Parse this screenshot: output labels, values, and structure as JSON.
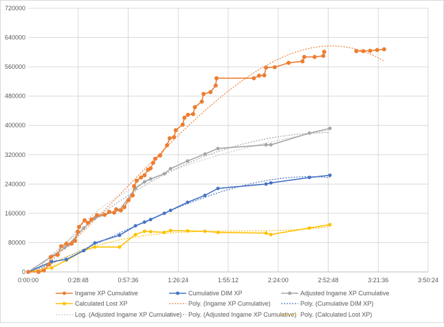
{
  "chart_data": {
    "type": "line",
    "title": "",
    "xlabel": "",
    "ylabel": "",
    "x_unit": "minutes",
    "xlim": [
      0,
      230.4
    ],
    "ylim": [
      0,
      720000
    ],
    "grid": true,
    "legend_placement": "bottom",
    "x_ticks": [
      0,
      28.8,
      57.6,
      86.4,
      115.2,
      144,
      172.8,
      201.6,
      230.4
    ],
    "x_tick_labels": [
      "0:00:00",
      "0:28:48",
      "0:57:36",
      "1:26:24",
      "1:55:12",
      "2:24:00",
      "2:52:48",
      "3:21:36",
      "3:50:24"
    ],
    "y_ticks": [
      0,
      80000,
      160000,
      240000,
      320000,
      400000,
      480000,
      560000,
      640000,
      720000
    ],
    "y_tick_labels": [
      "0",
      "80000",
      "160000",
      "240000",
      "320000",
      "400000",
      "480000",
      "560000",
      "640000",
      "720000"
    ],
    "series": [
      {
        "name": "Ingame XP Cumulative",
        "color": "#ed7d31",
        "x": [
          0,
          6,
          9,
          12,
          13,
          17,
          19,
          22,
          25,
          27,
          28.5,
          29.3,
          32.5,
          34.4,
          36.4,
          39.6,
          44,
          46.7,
          49.5,
          50.7,
          53.4,
          55.4,
          57.8,
          60.2,
          61,
          62.5,
          65,
          67,
          69,
          70.5,
          72,
          73.2,
          76,
          80,
          81.5,
          84,
          85,
          89,
          90,
          92,
          95,
          96,
          100,
          101,
          105,
          108,
          108.5,
          130,
          133,
          136,
          137,
          142,
          150,
          158,
          159,
          165,
          170,
          170.5,
          null,
          189,
          193,
          197,
          201,
          205
        ],
        "y": [
          0,
          0,
          4000,
          20000,
          41000,
          47000,
          70000,
          77000,
          77000,
          85000,
          110000,
          123000,
          141000,
          134000,
          143000,
          155000,
          156000,
          164000,
          162000,
          171000,
          168000,
          177000,
          196000,
          209000,
          234000,
          249000,
          258000,
          264000,
          279000,
          283000,
          298000,
          309000,
          318000,
          346000,
          365000,
          368000,
          387000,
          402000,
          421000,
          429000,
          431000,
          450000,
          465000,
          486000,
          491000,
          509000,
          529000,
          529000,
          536000,
          537000,
          558000,
          559000,
          571000,
          575000,
          587000,
          587000,
          590000,
          601000,
          null,
          603000,
          603000,
          604000,
          606000,
          608000
        ]
      },
      {
        "name": "Cumulative DIM XP",
        "color": "#4472c4",
        "x": [
          0,
          13.5,
          22,
          32,
          38.4,
          52.6,
          61.8,
          67,
          70.5,
          78.4,
          82,
          91.8,
          101.8,
          109.3,
          137,
          139.8,
          162,
          173.8
        ],
        "y": [
          0,
          28000,
          34000,
          58000,
          79000,
          100000,
          126000,
          136000,
          143000,
          160000,
          168000,
          190000,
          209000,
          228000,
          240000,
          243000,
          258000,
          264000
        ]
      },
      {
        "name": "Adjusted Ingame XP Cumulative",
        "color": "#a5a5a5",
        "x": [
          0,
          13.5,
          21,
          23,
          32,
          38.4,
          52.6,
          61.8,
          67,
          70.5,
          78.4,
          82,
          91.8,
          101.8,
          109.3,
          137,
          139.8,
          162,
          173.8
        ],
        "y": [
          0,
          42000,
          66000,
          73000,
          120000,
          147000,
          169000,
          228000,
          246000,
          254000,
          268000,
          282000,
          303000,
          322000,
          337000,
          347000,
          347000,
          379000,
          392000
        ]
      },
      {
        "name": "Calculated Lost XP",
        "color": "#ffc000",
        "x": [
          0,
          13.5,
          22,
          32,
          38.4,
          52.6,
          61.8,
          67,
          70.5,
          78.4,
          82,
          91.8,
          101.8,
          109.3,
          137,
          139.8,
          162,
          173.8
        ],
        "y": [
          0,
          11000,
          32000,
          58000,
          68000,
          68000,
          102000,
          111000,
          110000,
          108000,
          113000,
          112000,
          111000,
          108000,
          106000,
          102000,
          120000,
          129000
        ]
      }
    ],
    "trendlines": [
      {
        "name": "Poly. (Ingame XP Cumulative)",
        "series": 0,
        "type": "poly",
        "color": "#ed7d31"
      },
      {
        "name": "Poly. (Cumulative DIM XP)",
        "series": 1,
        "type": "poly",
        "color": "#4472c4"
      },
      {
        "name": "Log. (Adjusted Ingame XP Cumulative)",
        "series": 2,
        "type": "log",
        "color": "#c9c9c9"
      },
      {
        "name": "Poly. (Adjusted Ingame XP Cumulative)",
        "series": 2,
        "type": "poly",
        "color": "#a5a5a5"
      },
      {
        "name": "Poly. (Calculated Lost XP)",
        "series": 3,
        "type": "poly",
        "color": "#ffc000"
      }
    ]
  }
}
